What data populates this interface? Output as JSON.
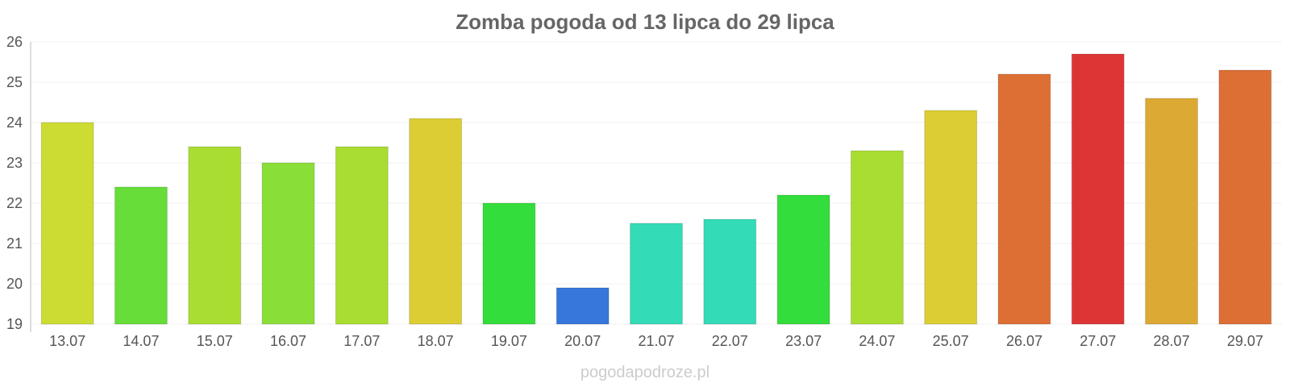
{
  "chart_data": {
    "type": "bar",
    "title": "Zomba pogoda od 13 lipca do 29 lipca",
    "xlabel": "",
    "ylabel": "",
    "ylim": [
      19,
      26
    ],
    "yticks": [
      "19",
      "20",
      "21",
      "22",
      "23",
      "24",
      "25",
      "26"
    ],
    "grid": true,
    "categories": [
      "13.07",
      "14.07",
      "15.07",
      "16.07",
      "17.07",
      "18.07",
      "19.07",
      "20.07",
      "21.07",
      "22.07",
      "23.07",
      "24.07",
      "25.07",
      "26.07",
      "27.07",
      "28.07",
      "29.07"
    ],
    "values": [
      24.0,
      22.4,
      23.4,
      23.0,
      23.4,
      24.1,
      22.0,
      19.9,
      21.5,
      21.6,
      22.2,
      23.3,
      24.3,
      25.2,
      25.7,
      24.6,
      25.3
    ],
    "colors": [
      "#cddc32",
      "#66dd38",
      "#a9dd32",
      "#8ade38",
      "#a9dd32",
      "#dccd34",
      "#33dd3b",
      "#3577db",
      "#33dbb6",
      "#33dbb6",
      "#33dd3b",
      "#a9dd32",
      "#dccd34",
      "#dd6f35",
      "#dd3535",
      "#dcaa34",
      "#dd6f35"
    ],
    "watermark": "pogodapodroze.pl"
  }
}
